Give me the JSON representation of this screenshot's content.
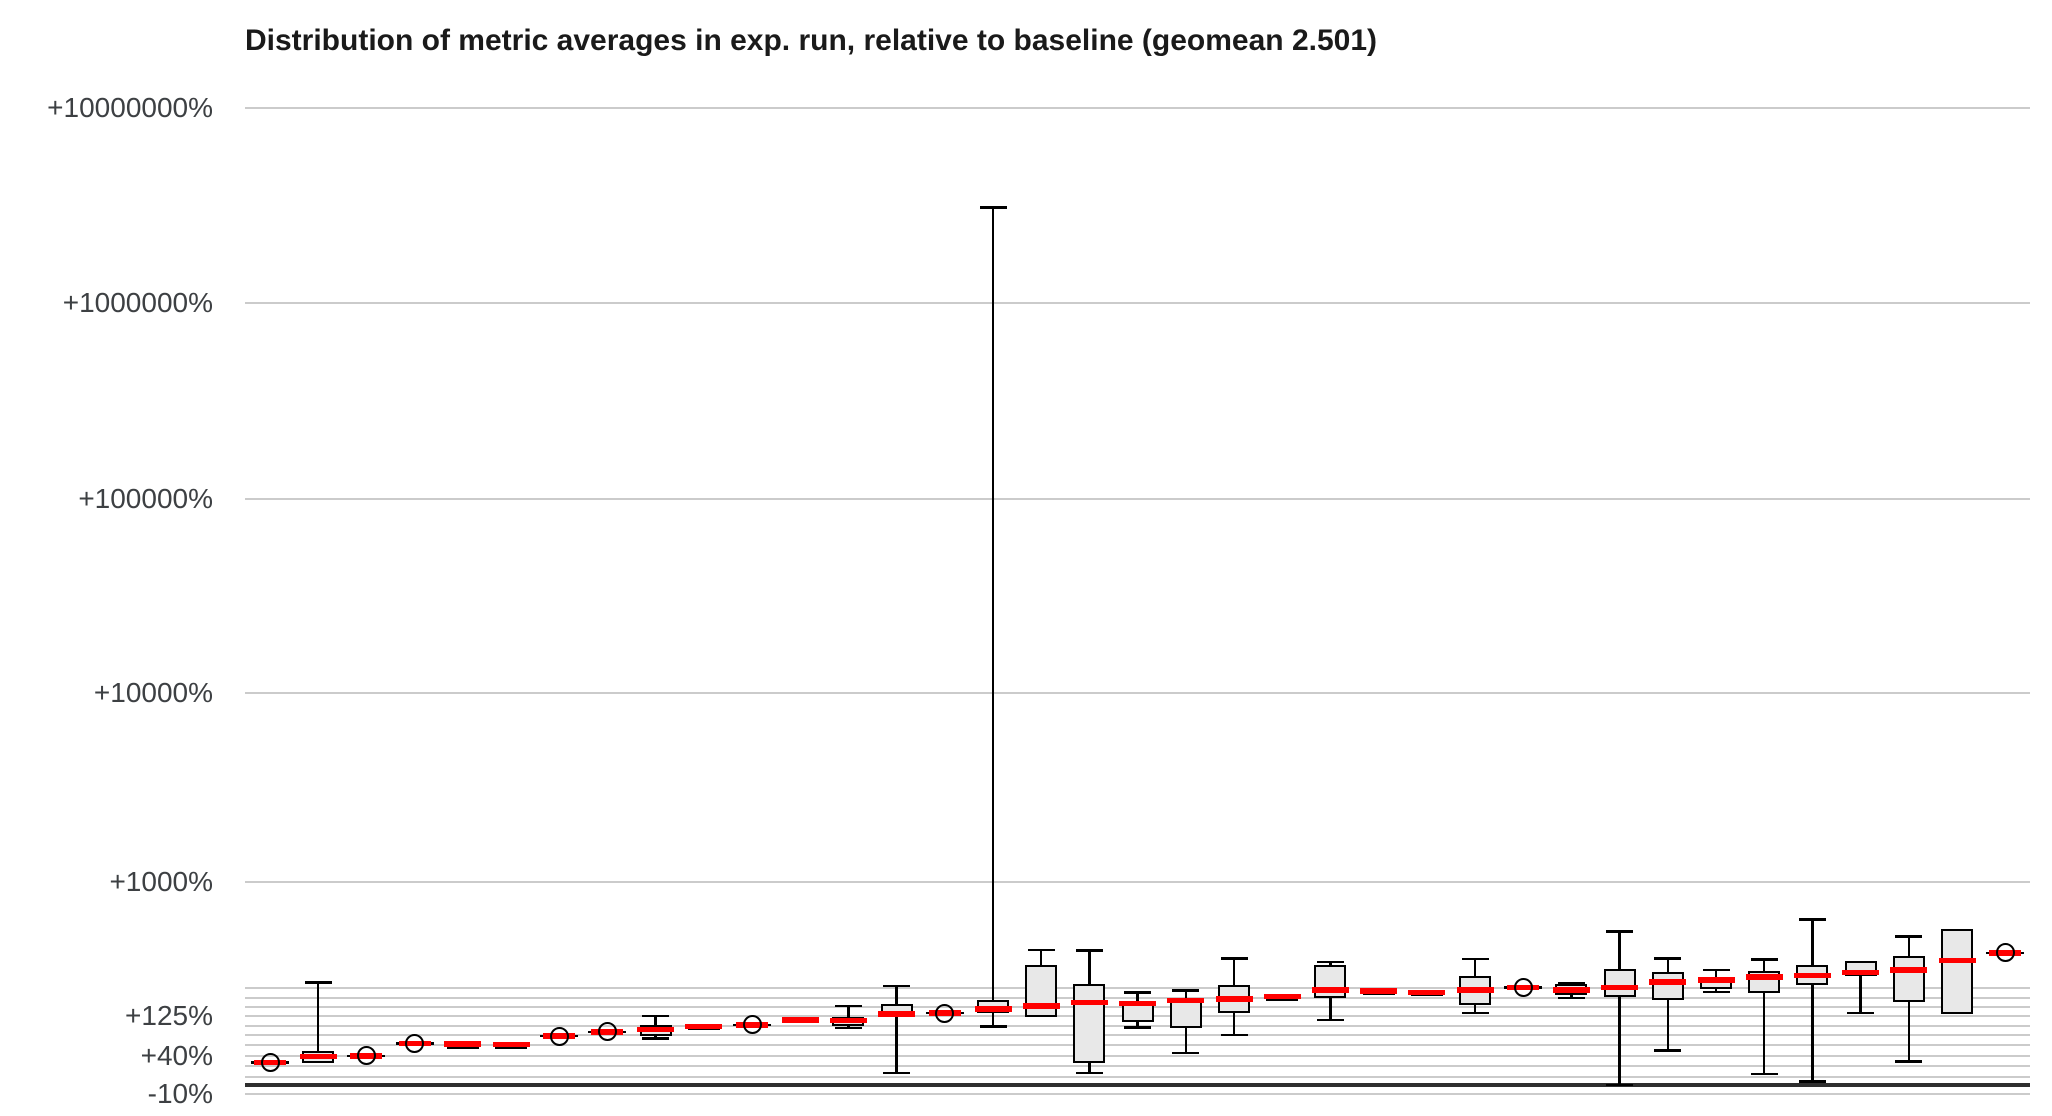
{
  "title": "Distribution of metric averages in exp. run, relative to baseline (geomean 2.501)",
  "geomean": "2.501",
  "colors": {
    "median_red": "#ff0000",
    "box_fill": "#e8e8e8",
    "box_stroke": "#000000",
    "gridline": "#cbcbcb",
    "baseline": "#2e2e2e",
    "tick_label": "#3d4043",
    "title": "#1a1a1a"
  },
  "y_axis": {
    "unit": "percent change vs baseline",
    "scale": "log10 of (1 + pct/100)",
    "major_ticks": [
      {
        "label": "+10000000%",
        "pct": 10000000
      },
      {
        "label": "+1000000%",
        "pct": 1000000
      },
      {
        "label": "+100000%",
        "pct": 100000
      },
      {
        "label": "+10000%",
        "pct": 10000
      },
      {
        "label": "+1000%",
        "pct": 1000
      },
      {
        "label": "+125%",
        "pct": 125
      },
      {
        "label": "+40%",
        "pct": 40
      },
      {
        "label": "-10%",
        "pct": -10
      }
    ],
    "minor_gridlines_pct": [
      215,
      180,
      150,
      100,
      80,
      60,
      25,
      10
    ],
    "baseline_pct": 0
  },
  "chart_data": {
    "type": "boxplot",
    "title": "Distribution of metric averages in exp. run, relative to baseline (geomean 2.501)",
    "xlabel": "",
    "ylabel": "",
    "legend": "none",
    "grid": "on",
    "unit": "% relative to baseline",
    "boxes": [
      {
        "kind": "point",
        "value": 30
      },
      {
        "kind": "box",
        "lo": 29,
        "q1": 29,
        "med": 40,
        "q3": 50,
        "hi": 234
      },
      {
        "kind": "point",
        "value": 41
      },
      {
        "kind": "point",
        "value": 63
      },
      {
        "kind": "box",
        "lo": 58,
        "q1": 58,
        "med": 62,
        "q3": 65,
        "hi": 65
      },
      {
        "kind": "box",
        "lo": 57,
        "q1": 57,
        "med": 61,
        "q3": 64,
        "hi": 64
      },
      {
        "kind": "point",
        "value": 78
      },
      {
        "kind": "point",
        "value": 87
      },
      {
        "kind": "box",
        "lo": 73,
        "q1": 78,
        "med": 92,
        "q3": 103,
        "hi": 126
      },
      {
        "kind": "box",
        "lo": 91,
        "q1": 91,
        "med": 99,
        "q3": 104,
        "hi": 104
      },
      {
        "kind": "point",
        "value": 103
      },
      {
        "kind": "box",
        "lo": 107,
        "q1": 107,
        "med": 115,
        "q3": 122,
        "hi": 122
      },
      {
        "kind": "box",
        "lo": 96,
        "q1": 100,
        "med": 114,
        "q3": 122,
        "hi": 154
      },
      {
        "kind": "box",
        "lo": 15,
        "q1": 122,
        "med": 131,
        "q3": 160,
        "hi": 221
      },
      {
        "kind": "point",
        "value": 133
      },
      {
        "kind": "box",
        "lo": 99,
        "q1": 133,
        "med": 145,
        "q3": 172,
        "hi": 3100000
      },
      {
        "kind": "box",
        "lo": 124,
        "q1": 124,
        "med": 154,
        "q3": 311,
        "hi": 391
      },
      {
        "kind": "box",
        "lo": 15,
        "q1": 30,
        "med": 164,
        "q3": 229,
        "hi": 387
      },
      {
        "kind": "box",
        "lo": 97,
        "q1": 111,
        "med": 162,
        "q3": 170,
        "hi": 197
      },
      {
        "kind": "box",
        "lo": 46,
        "q1": 95,
        "med": 170,
        "q3": 175,
        "hi": 204
      },
      {
        "kind": "box",
        "lo": 80,
        "q1": 133,
        "med": 175,
        "q3": 225,
        "hi": 345
      },
      {
        "kind": "box",
        "lo": 178,
        "q1": 178,
        "med": 183,
        "q3": 189,
        "hi": 189
      },
      {
        "kind": "box",
        "lo": 115,
        "q1": 178,
        "med": 206,
        "q3": 311,
        "hi": 326
      },
      {
        "kind": "box",
        "lo": 197,
        "q1": 197,
        "med": 203,
        "q3": 209,
        "hi": 209
      },
      {
        "kind": "box",
        "lo": 189,
        "q1": 189,
        "med": 197,
        "q3": 206,
        "hi": 206
      },
      {
        "kind": "box",
        "lo": 134,
        "q1": 157,
        "med": 206,
        "q3": 263,
        "hi": 341
      },
      {
        "kind": "point",
        "value": 216
      },
      {
        "kind": "box",
        "lo": 179,
        "q1": 189,
        "med": 206,
        "q3": 228,
        "hi": 232
      },
      {
        "kind": "box",
        "lo": 0,
        "q1": 183,
        "med": 216,
        "q3": 292,
        "hi": 509
      },
      {
        "kind": "box",
        "lo": 50,
        "q1": 172,
        "med": 236,
        "q3": 280,
        "hi": 345
      },
      {
        "kind": "box",
        "lo": 200,
        "q1": 209,
        "med": 245,
        "q3": 258,
        "hi": 288
      },
      {
        "kind": "box",
        "lo": 14,
        "q1": 195,
        "med": 256,
        "q3": 285,
        "hi": 340
      },
      {
        "kind": "box",
        "lo": 4,
        "q1": 225,
        "med": 263,
        "q3": 311,
        "hi": 605
      },
      {
        "kind": "box",
        "lo": 133,
        "q1": 261,
        "med": 277,
        "q3": 333,
        "hi": 333
      },
      {
        "kind": "box",
        "lo": 32,
        "q1": 167,
        "med": 288,
        "q3": 357,
        "hi": 474
      },
      {
        "kind": "box",
        "lo": 131,
        "q1": 131,
        "med": 333,
        "q3": 526,
        "hi": 526
      },
      {
        "kind": "point",
        "value": 375
      }
    ]
  }
}
